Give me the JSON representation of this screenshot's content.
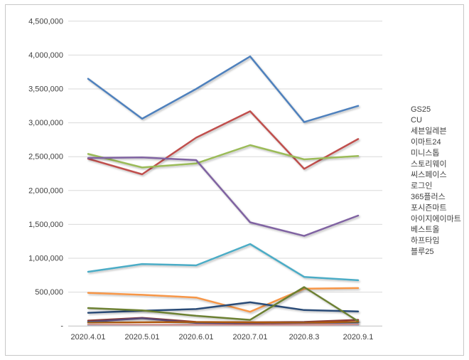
{
  "chart": {
    "background": "#FFFFFF",
    "frame_border_color": "#C8C8C8",
    "gridline_color": "#D9D9D9",
    "axis_line_color": "#BFBFBF",
    "tick_label_color": "#3F3F3F"
  },
  "chart_data": {
    "type": "line",
    "title": "",
    "xlabel": "",
    "ylabel": "",
    "grid": true,
    "legend_position": "right",
    "categories": [
      "2020.4.01",
      "2020.5.01",
      "2020.6.01",
      "2020.7.01",
      "2020.8.3",
      "2020.9.1"
    ],
    "y_axis": {
      "min": 0,
      "max": 4500000,
      "step": 500000,
      "tick_labels": [
        "-",
        "500,000",
        "1,000,000",
        "1,500,000",
        "2,000,000",
        "2,500,000",
        "3,000,000",
        "3,500,000",
        "4,000,000",
        "4,500,000"
      ]
    },
    "series": [
      {
        "name": "GS25",
        "color": "#4F81BD",
        "values": [
          3650000,
          3060000,
          3500000,
          3980000,
          3010000,
          3250000
        ]
      },
      {
        "name": "CU",
        "color": "#C0504D",
        "values": [
          2470000,
          2240000,
          2780000,
          3170000,
          2320000,
          2760000
        ]
      },
      {
        "name": "세븐일레븐",
        "color": "#9BBB59",
        "values": [
          2540000,
          2340000,
          2400000,
          2670000,
          2460000,
          2510000
        ]
      },
      {
        "name": "이마트24",
        "color": "#8064A2",
        "values": [
          2480000,
          2490000,
          2450000,
          1530000,
          1330000,
          1630000
        ]
      },
      {
        "name": "미니스톱",
        "color": "#4BACC6",
        "values": [
          800000,
          915000,
          895000,
          1210000,
          725000,
          675000
        ]
      },
      {
        "name": "스토리웨이",
        "color": "#F79646",
        "values": [
          490000,
          460000,
          420000,
          210000,
          550000,
          560000
        ]
      },
      {
        "name": "씨스페이스",
        "color": "#2A4C77",
        "values": [
          195000,
          225000,
          250000,
          350000,
          235000,
          215000
        ]
      },
      {
        "name": "로그인",
        "color": "#8E3A34",
        "values": [
          80000,
          120000,
          60000,
          55000,
          60000,
          90000
        ]
      },
      {
        "name": "365플러스",
        "color": "#6C8032",
        "values": [
          265000,
          230000,
          150000,
          90000,
          575000,
          70000
        ]
      },
      {
        "name": "포시즌마트",
        "color": "#5A4776",
        "values": [
          60000,
          115000,
          45000,
          40000,
          45000,
          50000
        ]
      },
      {
        "name": "아이지에이마트",
        "color": "#2E7C8C",
        "values": [
          60000,
          58000,
          55000,
          50000,
          48000,
          52000
        ]
      },
      {
        "name": "베스트올",
        "color": "#AF5A0E",
        "values": [
          45000,
          55000,
          60000,
          55000,
          45000,
          65000
        ]
      },
      {
        "name": "하프타임",
        "color": "#7BA3D0",
        "values": [
          15000,
          12000,
          10000,
          10000,
          12000,
          18000
        ]
      },
      {
        "name": "블루25",
        "color": "#C97B79",
        "values": [
          25000,
          22000,
          20000,
          15000,
          18000,
          25000
        ]
      }
    ]
  }
}
